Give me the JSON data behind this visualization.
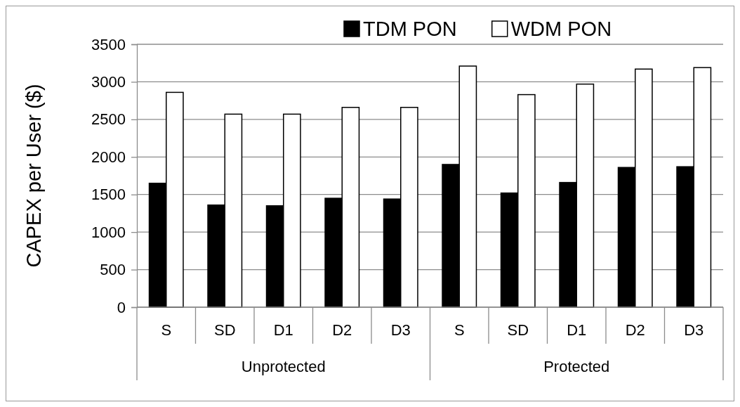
{
  "chart_data": {
    "type": "bar",
    "ylabel": "CAPEX per User ($)",
    "categories": [
      "S",
      "SD",
      "D1",
      "D2",
      "D3",
      "S",
      "SD",
      "D1",
      "D2",
      "D3"
    ],
    "series": [
      {
        "name": "TDM PON",
        "color": "#000000",
        "values": [
          1650,
          1360,
          1350,
          1450,
          1440,
          1900,
          1520,
          1660,
          1860,
          1870
        ]
      },
      {
        "name": "WDM PON",
        "color": "#ffffff",
        "values": [
          2860,
          2570,
          2570,
          2660,
          2660,
          3210,
          2830,
          2970,
          3170,
          3190
        ]
      }
    ],
    "annotations": [
      "Unprotected",
      "Protected"
    ],
    "ylim": [
      0,
      3500
    ],
    "yticks": [
      0,
      500,
      1000,
      1500,
      2000,
      2500,
      3000,
      3500
    ],
    "grid": "y",
    "legend": "top"
  }
}
